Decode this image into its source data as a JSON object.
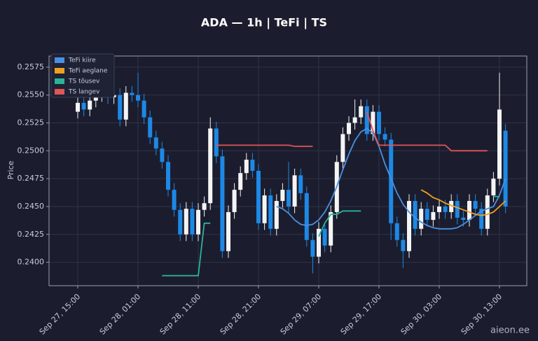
{
  "chart_data": {
    "type": "candlestick",
    "title": "ADA — 1h  |  TeFi  |  TS",
    "ylabel": "Price",
    "categories": [
      "Sep 27, 15:00",
      null,
      null,
      null,
      null,
      null,
      null,
      null,
      null,
      null,
      "Sep 28, 01:00",
      null,
      null,
      null,
      null,
      null,
      null,
      null,
      null,
      null,
      "Sep 28, 11:00",
      null,
      null,
      null,
      null,
      null,
      null,
      null,
      null,
      null,
      "Sep 28, 21:00",
      null,
      null,
      null,
      null,
      null,
      null,
      null,
      null,
      null,
      "Sep 29, 07:00",
      null,
      null,
      null,
      null,
      null,
      null,
      null,
      null,
      null,
      "Sep 29, 17:00",
      null,
      null,
      null,
      null,
      null,
      null,
      null,
      null,
      null,
      "Sep 30, 03:00",
      null,
      null,
      null,
      null,
      null,
      null,
      null,
      null,
      null,
      "Sep 30, 13:00",
      null
    ],
    "open": [
      0.2535,
      0.2543,
      0.2537,
      0.2545,
      0.255,
      0.2553,
      0.2548,
      0.255,
      0.2528,
      0.2552,
      0.255,
      0.2545,
      0.253,
      0.2512,
      0.2502,
      0.249,
      0.2465,
      0.2447,
      0.2425,
      0.2448,
      0.2425,
      0.2447,
      0.2453,
      0.252,
      0.2495,
      0.241,
      0.2445,
      0.2465,
      0.248,
      0.2492,
      0.2482,
      0.2435,
      0.246,
      0.243,
      0.2455,
      0.2465,
      0.245,
      0.2478,
      0.2462,
      0.242,
      0.2405,
      0.243,
      0.2415,
      0.2445,
      0.249,
      0.2515,
      0.2525,
      0.253,
      0.254,
      0.2515,
      0.2535,
      0.2515,
      0.251,
      0.2435,
      0.242,
      0.241,
      0.2455,
      0.243,
      0.2448,
      0.2438,
      0.2445,
      0.245,
      0.2445,
      0.2455,
      0.244,
      0.2438,
      0.2455,
      0.2448,
      0.243,
      0.246,
      0.2475,
      0.2518
    ],
    "high": [
      0.2549,
      0.2549,
      0.2551,
      0.2556,
      0.2559,
      0.2559,
      0.2556,
      0.2556,
      0.2558,
      0.2558,
      0.257,
      0.2551,
      0.2536,
      0.2518,
      0.2508,
      0.2496,
      0.2471,
      0.2453,
      0.2454,
      0.2454,
      0.2453,
      0.2459,
      0.253,
      0.2526,
      0.2501,
      0.2451,
      0.2471,
      0.2486,
      0.2498,
      0.2498,
      0.2488,
      0.2466,
      0.2466,
      0.2461,
      0.2471,
      0.249,
      0.2484,
      0.2484,
      0.2468,
      0.2426,
      0.2436,
      0.2436,
      0.2451,
      0.2496,
      0.2521,
      0.2531,
      0.2546,
      0.2546,
      0.2546,
      0.2541,
      0.2541,
      0.2521,
      0.2516,
      0.2441,
      0.2426,
      0.2461,
      0.2461,
      0.2454,
      0.2454,
      0.2451,
      0.2456,
      0.2456,
      0.2461,
      0.2461,
      0.2446,
      0.2461,
      0.2461,
      0.2454,
      0.2466,
      0.2481,
      0.257,
      0.2524
    ],
    "low": [
      0.2529,
      0.2531,
      0.2531,
      0.2539,
      0.2544,
      0.2542,
      0.2542,
      0.2522,
      0.2522,
      0.2544,
      0.2539,
      0.2524,
      0.2506,
      0.2496,
      0.2484,
      0.2459,
      0.2441,
      0.2419,
      0.2419,
      0.2419,
      0.2419,
      0.2441,
      0.2447,
      0.2489,
      0.2404,
      0.2404,
      0.2439,
      0.2459,
      0.2474,
      0.2476,
      0.2429,
      0.2429,
      0.2424,
      0.2424,
      0.2449,
      0.2444,
      0.2444,
      0.2456,
      0.2414,
      0.239,
      0.2399,
      0.2409,
      0.2409,
      0.2439,
      0.2484,
      0.2509,
      0.2519,
      0.2524,
      0.2509,
      0.2509,
      0.2509,
      0.2504,
      0.242,
      0.2414,
      0.2395,
      0.2404,
      0.2424,
      0.2424,
      0.2432,
      0.2432,
      0.2439,
      0.2439,
      0.2439,
      0.2434,
      0.2432,
      0.2432,
      0.2442,
      0.2424,
      0.2424,
      0.2454,
      0.2469,
      0.2444
    ],
    "close": [
      0.2543,
      0.2537,
      0.2545,
      0.255,
      0.2553,
      0.2548,
      0.255,
      0.2528,
      0.2552,
      0.255,
      0.2545,
      0.253,
      0.2512,
      0.2502,
      0.249,
      0.2465,
      0.2447,
      0.2425,
      0.2448,
      0.2425,
      0.2447,
      0.2453,
      0.252,
      0.2495,
      0.241,
      0.2445,
      0.2465,
      0.248,
      0.2492,
      0.2482,
      0.2435,
      0.246,
      0.243,
      0.2455,
      0.2465,
      0.245,
      0.2478,
      0.2462,
      0.242,
      0.2405,
      0.243,
      0.2415,
      0.2445,
      0.249,
      0.2515,
      0.2525,
      0.253,
      0.254,
      0.2515,
      0.2535,
      0.2515,
      0.251,
      0.2435,
      0.242,
      0.241,
      0.2455,
      0.243,
      0.2448,
      0.2438,
      0.2445,
      0.245,
      0.2445,
      0.2455,
      0.244,
      0.2438,
      0.2455,
      0.2448,
      0.243,
      0.246,
      0.2475,
      0.2537,
      0.245
    ],
    "up_color": "#f4f4f4",
    "down_color": "#1e88e5",
    "series": [
      {
        "name": "TeFi kiire",
        "color": "#4a90e2",
        "values": [
          null,
          null,
          null,
          null,
          null,
          null,
          null,
          null,
          null,
          null,
          null,
          null,
          null,
          null,
          null,
          null,
          null,
          null,
          null,
          null,
          null,
          null,
          null,
          null,
          null,
          null,
          null,
          null,
          null,
          null,
          null,
          null,
          null,
          0.245,
          0.2448,
          0.2444,
          0.2438,
          0.2434,
          0.2433,
          0.2434,
          0.2438,
          0.2445,
          0.2455,
          0.2468,
          0.2483,
          0.2497,
          0.2509,
          0.2517,
          0.252,
          0.2516,
          0.2504,
          0.2488,
          0.2475,
          0.2462,
          0.2452,
          0.2445,
          0.244,
          0.2436,
          0.2433,
          0.2431,
          0.243,
          0.243,
          0.243,
          0.2431,
          0.2434,
          0.2438,
          0.2442,
          0.2446,
          0.2448,
          0.245,
          0.246,
          0.2475
        ]
      },
      {
        "name": "TeFi aeglane",
        "color": "#f0a020",
        "values": [
          null,
          null,
          null,
          null,
          null,
          null,
          null,
          null,
          null,
          null,
          null,
          null,
          null,
          null,
          null,
          null,
          null,
          null,
          null,
          null,
          null,
          null,
          null,
          null,
          null,
          null,
          null,
          null,
          null,
          null,
          null,
          null,
          null,
          null,
          null,
          null,
          null,
          null,
          null,
          null,
          null,
          null,
          null,
          null,
          null,
          null,
          null,
          null,
          null,
          null,
          null,
          null,
          null,
          null,
          null,
          null,
          null,
          0.2465,
          0.2462,
          0.2458,
          0.2456,
          0.2453,
          0.2451,
          0.2449,
          0.2447,
          0.2445,
          0.2443,
          0.2442,
          0.2443,
          0.2445,
          0.245,
          0.2455
        ]
      },
      {
        "name": "TS tõusev",
        "color": "#2bb39a",
        "values": [
          null,
          null,
          null,
          null,
          null,
          null,
          null,
          null,
          null,
          null,
          null,
          null,
          null,
          null,
          0.2388,
          0.2388,
          0.2388,
          0.2388,
          0.2388,
          0.2388,
          0.2388,
          0.2435,
          0.2435,
          null,
          null,
          null,
          null,
          null,
          null,
          null,
          null,
          null,
          null,
          null,
          null,
          null,
          null,
          null,
          null,
          null,
          0.2423,
          0.2435,
          0.2443,
          0.2443,
          0.2446,
          0.2446,
          0.2446,
          0.2446,
          null,
          null,
          null,
          null,
          null,
          null,
          null,
          null,
          null,
          null,
          null,
          null,
          null,
          null,
          null,
          null,
          null,
          null,
          null,
          null,
          null,
          0.2459,
          0.2459,
          null
        ]
      },
      {
        "name": "TS langev",
        "color": "#e05555",
        "values": [
          null,
          null,
          null,
          null,
          null,
          null,
          null,
          null,
          null,
          null,
          null,
          null,
          null,
          null,
          null,
          null,
          null,
          null,
          null,
          null,
          null,
          null,
          null,
          0.2505,
          0.2505,
          0.2505,
          0.2505,
          0.2505,
          0.2505,
          0.2505,
          0.2505,
          0.2505,
          0.2505,
          0.2505,
          0.2505,
          0.2505,
          0.2504,
          0.2504,
          0.2504,
          0.2504,
          null,
          null,
          null,
          null,
          null,
          null,
          null,
          null,
          0.2535,
          0.2518,
          0.2505,
          0.2505,
          0.2505,
          0.2505,
          0.2505,
          0.2505,
          0.2505,
          0.2505,
          0.2505,
          0.2505,
          0.2505,
          0.2505,
          0.25,
          0.25,
          0.25,
          0.25,
          0.25,
          0.25,
          0.25,
          null,
          null,
          null
        ]
      }
    ],
    "ylim": [
      0.2379,
      0.2585
    ],
    "yticks": [
      {
        "value": 0.24,
        "label": "0.2400"
      },
      0.2425,
      {
        "value": 0.245,
        "label": "0.2450"
      },
      0.2475,
      {
        "value": 0.25,
        "label": "0.2500"
      },
      0.2525,
      {
        "value": 0.255,
        "label": "0.2550"
      },
      0.2575
    ],
    "grid": true,
    "legend": "upper left"
  },
  "watermark": "aieon.ee"
}
